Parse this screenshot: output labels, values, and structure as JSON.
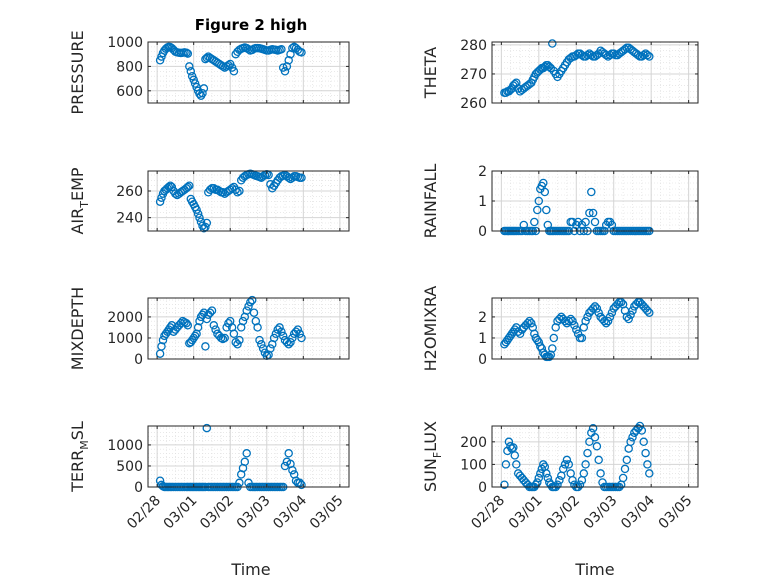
{
  "figure": {
    "title": "Figure 2 high",
    "time_label": "Time"
  },
  "colors": {
    "marker": "#0072BD",
    "axis": "#262626",
    "grid": "#dcdcdc"
  },
  "x_ticks": [
    "02/28",
    "03/01",
    "03/02",
    "03/03",
    "03/04",
    "03/05"
  ],
  "chart_data": [
    {
      "type": "scatter",
      "ylabel": {
        "base": "PRESSURE",
        "sub": ""
      },
      "ylim": [
        500,
        1000
      ],
      "yticks": [
        600,
        800,
        1000
      ],
      "x_values": "days since 02/28",
      "x": [
        0.08,
        0.12,
        0.16,
        0.2,
        0.24,
        0.28,
        0.32,
        0.36,
        0.4,
        0.45,
        0.5,
        0.55,
        0.6,
        0.65,
        0.7,
        0.75,
        0.8,
        0.84,
        0.88,
        0.92,
        0.96,
        1.0,
        1.04,
        1.08,
        1.12,
        1.16,
        1.2,
        1.24,
        1.28,
        1.32,
        1.36,
        1.4,
        1.45,
        1.5,
        1.55,
        1.6,
        1.65,
        1.7,
        1.75,
        1.8,
        1.85,
        1.9,
        1.95,
        2.0,
        2.05,
        2.1,
        2.15,
        2.2,
        2.25,
        2.3,
        2.35,
        2.4,
        2.45,
        2.5,
        2.55,
        2.6,
        2.65,
        2.7,
        2.75,
        2.8,
        2.85,
        2.9,
        2.95,
        3.0,
        3.05,
        3.1,
        3.15,
        3.2,
        3.25,
        3.3,
        3.35,
        3.4,
        3.45,
        3.5,
        3.55,
        3.6,
        3.65,
        3.7,
        3.75,
        3.8,
        3.85,
        3.9,
        3.95
      ],
      "y": [
        850,
        880,
        910,
        930,
        945,
        955,
        960,
        958,
        950,
        935,
        920,
        915,
        912,
        910,
        912,
        915,
        912,
        905,
        800,
        760,
        720,
        690,
        660,
        630,
        600,
        575,
        560,
        580,
        620,
        860,
        870,
        880,
        870,
        860,
        850,
        840,
        830,
        820,
        810,
        800,
        790,
        800,
        810,
        820,
        790,
        760,
        900,
        920,
        935,
        945,
        950,
        955,
        950,
        940,
        930,
        935,
        945,
        950,
        950,
        948,
        945,
        940,
        935,
        930,
        930,
        935,
        940,
        938,
        935,
        930,
        935,
        940,
        790,
        760,
        800,
        850,
        900,
        950,
        960,
        950,
        935,
        920,
        915
      ]
    },
    {
      "type": "scatter",
      "ylabel": {
        "base": "THETA",
        "sub": ""
      },
      "ylim": [
        260,
        281
      ],
      "yticks": [
        260,
        270,
        280
      ],
      "x": [
        0.08,
        0.12,
        0.16,
        0.2,
        0.24,
        0.28,
        0.32,
        0.36,
        0.4,
        0.45,
        0.5,
        0.55,
        0.6,
        0.65,
        0.7,
        0.75,
        0.8,
        0.84,
        0.88,
        0.92,
        0.96,
        1.0,
        1.04,
        1.08,
        1.12,
        1.16,
        1.2,
        1.24,
        1.28,
        1.32,
        1.36,
        1.4,
        1.45,
        1.5,
        1.55,
        1.6,
        1.65,
        1.7,
        1.75,
        1.8,
        1.85,
        1.9,
        1.95,
        2.0,
        2.05,
        2.1,
        2.15,
        2.2,
        2.25,
        2.3,
        2.35,
        2.4,
        2.45,
        2.5,
        2.55,
        2.6,
        2.65,
        2.7,
        2.75,
        2.8,
        2.85,
        2.9,
        2.95,
        3.0,
        3.05,
        3.1,
        3.15,
        3.2,
        3.25,
        3.3,
        3.35,
        3.4,
        3.45,
        3.5,
        3.55,
        3.6,
        3.65,
        3.7,
        3.75,
        3.8,
        3.85,
        3.9,
        3.95
      ],
      "y": [
        263.5,
        263.5,
        264,
        264,
        264.5,
        265,
        266,
        266.5,
        267,
        265,
        264,
        264.5,
        265,
        265.5,
        266,
        266.5,
        267,
        268,
        269,
        270,
        270.5,
        271,
        271.5,
        272,
        272,
        272.5,
        273,
        273,
        272.5,
        272,
        280.5,
        271,
        270,
        269,
        270,
        271,
        272,
        273,
        274,
        275,
        275.5,
        276,
        276,
        276.5,
        277,
        277,
        276.5,
        276,
        276,
        276.5,
        277,
        276.5,
        276,
        276,
        276.5,
        277,
        278,
        277.5,
        277,
        276.5,
        276,
        276.5,
        277,
        277,
        276.5,
        276.5,
        277,
        277.5,
        278,
        278.5,
        279,
        279,
        278.5,
        278,
        277.5,
        277,
        276.5,
        276,
        276,
        276.5,
        277,
        276.5,
        276
      ]
    },
    {
      "type": "scatter",
      "ylabel": {
        "base": "AIR",
        "sub": "T",
        "rest": "EMP"
      },
      "ylim": [
        230,
        275
      ],
      "yticks": [
        240,
        260
      ],
      "x": [
        0.08,
        0.12,
        0.16,
        0.2,
        0.24,
        0.28,
        0.32,
        0.36,
        0.4,
        0.45,
        0.5,
        0.55,
        0.6,
        0.65,
        0.7,
        0.75,
        0.8,
        0.84,
        0.88,
        0.92,
        0.96,
        1.0,
        1.04,
        1.08,
        1.12,
        1.16,
        1.2,
        1.24,
        1.28,
        1.32,
        1.36,
        1.4,
        1.45,
        1.5,
        1.55,
        1.6,
        1.65,
        1.7,
        1.75,
        1.8,
        1.85,
        1.9,
        1.95,
        2.0,
        2.05,
        2.1,
        2.15,
        2.2,
        2.25,
        2.3,
        2.35,
        2.4,
        2.45,
        2.5,
        2.55,
        2.6,
        2.65,
        2.7,
        2.75,
        2.8,
        2.85,
        2.9,
        2.95,
        3.0,
        3.05,
        3.1,
        3.15,
        3.2,
        3.25,
        3.3,
        3.35,
        3.4,
        3.45,
        3.5,
        3.55,
        3.6,
        3.65,
        3.7,
        3.75,
        3.8,
        3.85,
        3.9,
        3.95
      ],
      "y": [
        252,
        255,
        258,
        260,
        261,
        262,
        263,
        264,
        263,
        260,
        258,
        257,
        258,
        259,
        260,
        261,
        262,
        263,
        264,
        254,
        252,
        250,
        248,
        246,
        243,
        240,
        237,
        234,
        232,
        233,
        236,
        259,
        261,
        262,
        262,
        261,
        261,
        260,
        259,
        259,
        258,
        259,
        260,
        261,
        262,
        263,
        261,
        259,
        260,
        268,
        270,
        271,
        272,
        272.5,
        273,
        272.5,
        272,
        271.5,
        271,
        270.5,
        270,
        271,
        272,
        272.5,
        272,
        265,
        262,
        264,
        266,
        268,
        270,
        271,
        271.5,
        272,
        271,
        270,
        269,
        270,
        271,
        271,
        270.5,
        270,
        270
      ]
    },
    {
      "type": "scatter",
      "ylabel": {
        "base": "RAINFALL",
        "sub": ""
      },
      "ylim": [
        0,
        2
      ],
      "yticks": [
        0,
        1,
        2
      ],
      "x": [
        0.08,
        0.12,
        0.16,
        0.2,
        0.24,
        0.28,
        0.32,
        0.36,
        0.4,
        0.45,
        0.5,
        0.55,
        0.6,
        0.65,
        0.7,
        0.75,
        0.8,
        0.84,
        0.88,
        0.92,
        0.96,
        1.0,
        1.04,
        1.08,
        1.12,
        1.16,
        1.2,
        1.24,
        1.28,
        1.32,
        1.36,
        1.4,
        1.45,
        1.5,
        1.55,
        1.6,
        1.65,
        1.7,
        1.75,
        1.8,
        1.85,
        1.9,
        1.95,
        2.0,
        2.05,
        2.1,
        2.15,
        2.2,
        2.25,
        2.3,
        2.35,
        2.4,
        2.45,
        2.5,
        2.55,
        2.6,
        2.65,
        2.7,
        2.75,
        2.8,
        2.85,
        2.9,
        2.95,
        3.0,
        3.05,
        3.1,
        3.15,
        3.2,
        3.25,
        3.3,
        3.35,
        3.4,
        3.45,
        3.5,
        3.55,
        3.6,
        3.65,
        3.7,
        3.75,
        3.8,
        3.85,
        3.9,
        3.95
      ],
      "y": [
        0,
        0,
        0,
        0,
        0,
        0,
        0,
        0,
        0,
        0,
        0,
        0,
        0.2,
        0,
        0,
        0,
        0,
        0,
        0.3,
        0,
        0.7,
        1.0,
        1.4,
        1.5,
        1.6,
        1.3,
        0.7,
        0.2,
        0,
        0,
        0,
        0,
        0,
        0,
        0,
        0,
        0,
        0,
        0,
        0,
        0.3,
        0.3,
        0,
        0.2,
        0.3,
        0,
        0.2,
        0,
        0.3,
        0,
        0.6,
        1.3,
        0.6,
        0.3,
        0,
        0,
        0,
        0,
        0,
        0.2,
        0.3,
        0.3,
        0.2,
        0,
        0,
        0,
        0,
        0,
        0,
        0,
        0,
        0,
        0,
        0,
        0,
        0,
        0,
        0,
        0,
        0,
        0,
        0,
        0
      ]
    },
    {
      "type": "scatter",
      "ylabel": {
        "base": "MIXDEPTH",
        "sub": ""
      },
      "ylim": [
        0,
        2900
      ],
      "yticks": [
        0,
        1000,
        2000
      ],
      "x": [
        0.08,
        0.12,
        0.16,
        0.2,
        0.24,
        0.28,
        0.32,
        0.36,
        0.4,
        0.45,
        0.5,
        0.55,
        0.6,
        0.65,
        0.7,
        0.75,
        0.8,
        0.84,
        0.88,
        0.92,
        0.96,
        1.0,
        1.04,
        1.08,
        1.12,
        1.16,
        1.2,
        1.24,
        1.28,
        1.32,
        1.36,
        1.4,
        1.45,
        1.5,
        1.55,
        1.6,
        1.65,
        1.7,
        1.75,
        1.8,
        1.85,
        1.9,
        1.95,
        2.0,
        2.05,
        2.1,
        2.15,
        2.2,
        2.25,
        2.3,
        2.35,
        2.4,
        2.45,
        2.5,
        2.55,
        2.6,
        2.65,
        2.7,
        2.75,
        2.8,
        2.85,
        2.9,
        2.95,
        3.0,
        3.05,
        3.1,
        3.15,
        3.2,
        3.25,
        3.3,
        3.35,
        3.4,
        3.45,
        3.5,
        3.55,
        3.6,
        3.65,
        3.7,
        3.75,
        3.8,
        3.85,
        3.9,
        3.95
      ],
      "y": [
        250,
        600,
        900,
        1100,
        1200,
        1300,
        1400,
        1500,
        1600,
        1300,
        1400,
        1500,
        1600,
        1700,
        1800,
        1750,
        1700,
        1600,
        750,
        800,
        900,
        1000,
        1100,
        1200,
        1500,
        1800,
        2000,
        2100,
        2200,
        600,
        1900,
        2100,
        2200,
        2300,
        1600,
        1400,
        1200,
        1100,
        1000,
        950,
        1000,
        1500,
        1700,
        1800,
        1500,
        1200,
        800,
        700,
        900,
        1500,
        1800,
        2000,
        2300,
        2500,
        2700,
        2800,
        2200,
        1800,
        1500,
        900,
        700,
        500,
        300,
        150,
        200,
        500,
        700,
        1000,
        1200,
        1400,
        1500,
        1300,
        1100,
        900,
        800,
        700,
        800,
        1000,
        1200,
        1300,
        1400,
        1200,
        1000
      ]
    },
    {
      "type": "scatter",
      "ylabel": {
        "base": "H2OMIXRA",
        "sub": ""
      },
      "ylim": [
        0,
        2.9
      ],
      "yticks": [
        0,
        1,
        2
      ],
      "x": [
        0.08,
        0.12,
        0.16,
        0.2,
        0.24,
        0.28,
        0.32,
        0.36,
        0.4,
        0.45,
        0.5,
        0.55,
        0.6,
        0.65,
        0.7,
        0.75,
        0.8,
        0.84,
        0.88,
        0.92,
        0.96,
        1.0,
        1.04,
        1.08,
        1.12,
        1.16,
        1.2,
        1.24,
        1.28,
        1.32,
        1.36,
        1.4,
        1.45,
        1.5,
        1.55,
        1.6,
        1.65,
        1.7,
        1.75,
        1.8,
        1.85,
        1.9,
        1.95,
        2.0,
        2.05,
        2.1,
        2.15,
        2.2,
        2.25,
        2.3,
        2.35,
        2.4,
        2.45,
        2.5,
        2.55,
        2.6,
        2.65,
        2.7,
        2.75,
        2.8,
        2.85,
        2.9,
        2.95,
        3.0,
        3.05,
        3.1,
        3.15,
        3.2,
        3.25,
        3.3,
        3.35,
        3.4,
        3.45,
        3.5,
        3.55,
        3.6,
        3.65,
        3.7,
        3.75,
        3.8,
        3.85,
        3.9,
        3.95
      ],
      "y": [
        0.7,
        0.8,
        0.9,
        1.0,
        1.1,
        1.2,
        1.3,
        1.4,
        1.5,
        1.3,
        1.2,
        1.4,
        1.5,
        1.6,
        1.7,
        1.8,
        1.7,
        1.5,
        1.2,
        1.0,
        0.9,
        0.8,
        0.6,
        0.5,
        0.3,
        0.2,
        0.1,
        0.1,
        0.1,
        0.2,
        0.5,
        1.0,
        1.5,
        1.8,
        1.9,
        2.0,
        1.9,
        1.8,
        1.7,
        1.8,
        1.9,
        1.8,
        1.6,
        1.4,
        1.2,
        1.0,
        1.0,
        1.5,
        1.8,
        2.0,
        2.2,
        2.3,
        2.4,
        2.5,
        2.4,
        2.2,
        2.0,
        1.9,
        1.8,
        1.7,
        1.8,
        2.0,
        2.2,
        2.4,
        2.5,
        2.6,
        2.7,
        2.7,
        2.6,
        2.3,
        2.0,
        1.9,
        2.1,
        2.3,
        2.5,
        2.6,
        2.7,
        2.7,
        2.6,
        2.5,
        2.4,
        2.3,
        2.2
      ]
    },
    {
      "type": "scatter",
      "ylabel": {
        "base": "TERR",
        "sub": "M",
        "rest": "SL"
      },
      "ylim": [
        0,
        1450
      ],
      "yticks": [
        0,
        500,
        1000
      ],
      "x": [
        0.08,
        0.12,
        0.16,
        0.2,
        0.24,
        0.28,
        0.32,
        0.36,
        0.4,
        0.45,
        0.5,
        0.55,
        0.6,
        0.65,
        0.7,
        0.75,
        0.8,
        0.84,
        0.88,
        0.92,
        0.96,
        1.0,
        1.04,
        1.08,
        1.12,
        1.16,
        1.2,
        1.24,
        1.28,
        1.32,
        1.36,
        1.4,
        1.45,
        1.5,
        1.55,
        1.6,
        1.65,
        1.7,
        1.75,
        1.8,
        1.85,
        1.9,
        1.95,
        2.0,
        2.05,
        2.1,
        2.15,
        2.2,
        2.25,
        2.3,
        2.35,
        2.4,
        2.45,
        2.5,
        2.55,
        2.6,
        2.65,
        2.7,
        2.75,
        2.8,
        2.85,
        2.9,
        2.95,
        3.0,
        3.05,
        3.1,
        3.15,
        3.2,
        3.25,
        3.3,
        3.35,
        3.4,
        3.45,
        3.5,
        3.55,
        3.6,
        3.65,
        3.7,
        3.75,
        3.8,
        3.85,
        3.9,
        3.95
      ],
      "y": [
        150,
        50,
        20,
        0,
        0,
        0,
        0,
        0,
        0,
        0,
        0,
        0,
        0,
        0,
        0,
        0,
        0,
        0,
        0,
        0,
        0,
        0,
        0,
        0,
        0,
        0,
        0,
        0,
        0,
        0,
        1400,
        0,
        0,
        0,
        0,
        0,
        0,
        0,
        0,
        0,
        0,
        0,
        0,
        0,
        0,
        0,
        0,
        0,
        100,
        300,
        450,
        600,
        800,
        100,
        0,
        0,
        0,
        0,
        0,
        0,
        0,
        0,
        0,
        0,
        0,
        0,
        0,
        0,
        0,
        0,
        0,
        0,
        0,
        500,
        600,
        800,
        550,
        400,
        300,
        150,
        100,
        100,
        50
      ]
    },
    {
      "type": "scatter",
      "ylabel": {
        "base": "SUN",
        "sub": "F",
        "rest": "LUX"
      },
      "ylim": [
        0,
        270
      ],
      "yticks": [
        0,
        100,
        200
      ],
      "x": [
        0.08,
        0.12,
        0.16,
        0.2,
        0.24,
        0.28,
        0.32,
        0.36,
        0.4,
        0.45,
        0.5,
        0.55,
        0.6,
        0.65,
        0.7,
        0.75,
        0.8,
        0.84,
        0.88,
        0.92,
        0.96,
        1.0,
        1.04,
        1.08,
        1.12,
        1.16,
        1.2,
        1.24,
        1.28,
        1.32,
        1.36,
        1.4,
        1.45,
        1.5,
        1.55,
        1.6,
        1.65,
        1.7,
        1.75,
        1.8,
        1.85,
        1.9,
        1.95,
        2.0,
        2.05,
        2.1,
        2.15,
        2.2,
        2.25,
        2.3,
        2.35,
        2.4,
        2.45,
        2.5,
        2.55,
        2.6,
        2.65,
        2.7,
        2.75,
        2.8,
        2.85,
        2.9,
        2.95,
        3.0,
        3.05,
        3.1,
        3.15,
        3.2,
        3.25,
        3.3,
        3.35,
        3.4,
        3.45,
        3.5,
        3.55,
        3.6,
        3.65,
        3.7,
        3.75,
        3.8,
        3.85,
        3.9,
        3.95
      ],
      "y": [
        10,
        100,
        160,
        200,
        180,
        170,
        175,
        140,
        100,
        60,
        50,
        40,
        30,
        20,
        10,
        0,
        0,
        0,
        0,
        10,
        20,
        40,
        60,
        80,
        100,
        90,
        60,
        40,
        20,
        10,
        0,
        0,
        0,
        10,
        30,
        50,
        80,
        100,
        120,
        100,
        60,
        30,
        10,
        0,
        0,
        10,
        30,
        60,
        100,
        150,
        200,
        240,
        260,
        220,
        180,
        120,
        60,
        20,
        0,
        0,
        0,
        0,
        0,
        0,
        0,
        0,
        0,
        10,
        40,
        80,
        120,
        170,
        200,
        220,
        240,
        250,
        260,
        270,
        250,
        200,
        150,
        100,
        60
      ]
    }
  ]
}
